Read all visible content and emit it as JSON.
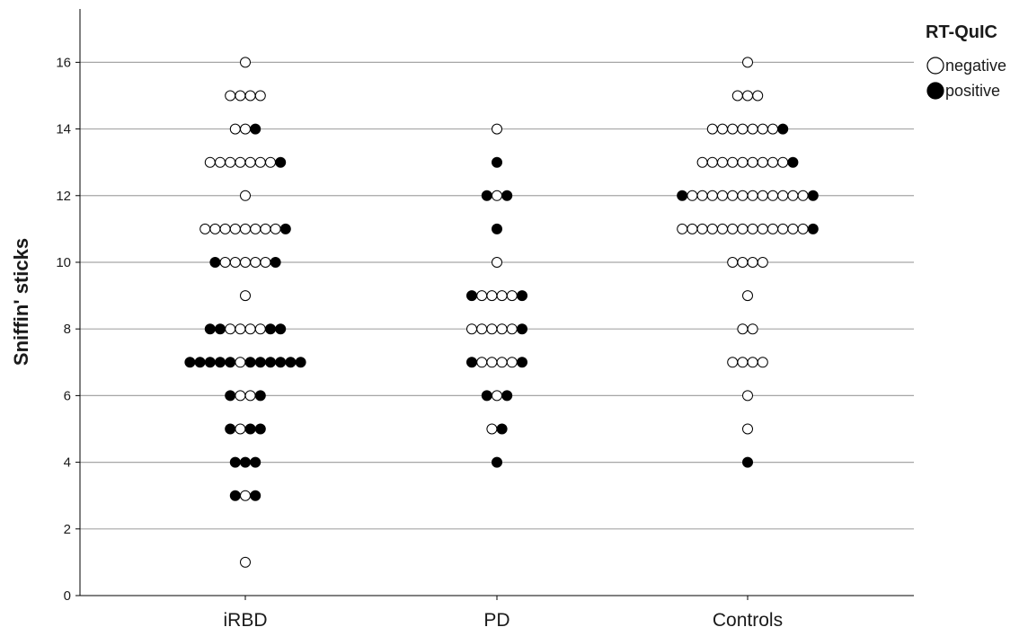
{
  "chart_data": {
    "type": "scatter",
    "subtype": "dot-plot",
    "title": "",
    "xlabel": "",
    "ylabel": "Sniffin' sticks",
    "ylim": [
      0,
      17.6
    ],
    "yticks": [
      0,
      2,
      4,
      6,
      8,
      10,
      12,
      14,
      16
    ],
    "grid": true,
    "categories": [
      "iRBD",
      "PD",
      "Controls"
    ],
    "legend": {
      "title": "RT-QuIC",
      "placement": "right",
      "entries": [
        {
          "name": "negative",
          "fill": "#ffffff"
        },
        {
          "name": "positive",
          "fill": "#000000"
        }
      ]
    },
    "marker_stroke": "#000000",
    "gridline_color": "#a6a6a6",
    "points": {
      "iRBD": [
        {
          "y": 16,
          "seq": "n"
        },
        {
          "y": 15,
          "seq": "nnnn"
        },
        {
          "y": 14,
          "seq": "nnp"
        },
        {
          "y": 13,
          "seq": "nnnnnnnp"
        },
        {
          "y": 12,
          "seq": "n"
        },
        {
          "y": 11,
          "seq": "nnnnnnnnp"
        },
        {
          "y": 10,
          "seq": "pnnnnnp"
        },
        {
          "y": 9,
          "seq": "n"
        },
        {
          "y": 8,
          "seq": "ppnnnnpp"
        },
        {
          "y": 7,
          "seq": "pppppnpppppp"
        },
        {
          "y": 6,
          "seq": "pnnp"
        },
        {
          "y": 5,
          "seq": "pnpp"
        },
        {
          "y": 4,
          "seq": "ppp"
        },
        {
          "y": 3,
          "seq": "pnp"
        },
        {
          "y": 1,
          "seq": "n"
        }
      ],
      "PD": [
        {
          "y": 14,
          "seq": "n"
        },
        {
          "y": 13,
          "seq": "p"
        },
        {
          "y": 12,
          "seq": "pnp"
        },
        {
          "y": 11,
          "seq": "p"
        },
        {
          "y": 10,
          "seq": "n"
        },
        {
          "y": 9,
          "seq": "pnnnnp"
        },
        {
          "y": 8,
          "seq": "nnnnnp"
        },
        {
          "y": 7,
          "seq": "pnnnnp"
        },
        {
          "y": 6,
          "seq": "pnp"
        },
        {
          "y": 5,
          "seq": "np"
        },
        {
          "y": 4,
          "seq": "p"
        }
      ],
      "Controls": [
        {
          "y": 16,
          "seq": "n"
        },
        {
          "y": 15,
          "seq": "nnn"
        },
        {
          "y": 14,
          "seq": "nnnnnnnp"
        },
        {
          "y": 13,
          "seq": "nnnnnnnnnp"
        },
        {
          "y": 12,
          "seq": "pnnnnnnnnnnnnp"
        },
        {
          "y": 11,
          "seq": "nnnnnnnnnnnnnp"
        },
        {
          "y": 10,
          "seq": "nnnn"
        },
        {
          "y": 9,
          "seq": "n"
        },
        {
          "y": 8,
          "seq": "nn"
        },
        {
          "y": 7,
          "seq": "nnnn"
        },
        {
          "y": 6,
          "seq": "n"
        },
        {
          "y": 5,
          "seq": "n"
        },
        {
          "y": 4,
          "seq": "p"
        }
      ]
    }
  }
}
